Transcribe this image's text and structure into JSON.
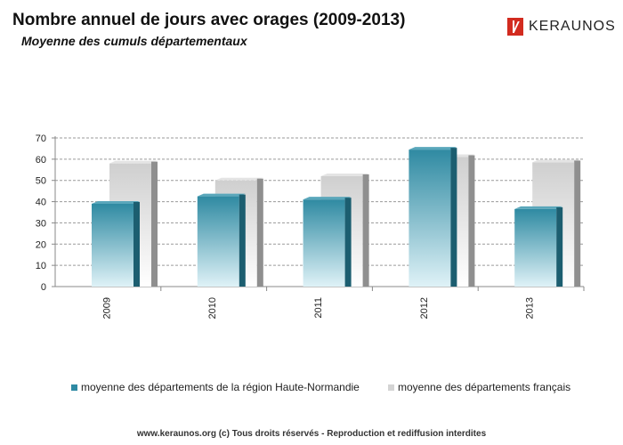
{
  "header": {
    "title": "Nombre annuel de jours avec orages (2009-2013)",
    "subtitle": "Moyenne des cumuls départementaux",
    "logo_text": "KERAUNOS"
  },
  "footer": {
    "text": "www.keraunos.org  (c) Tous droits réservés - Reproduction et rediffusion interdites"
  },
  "colors": {
    "series1": "#2e8aa3",
    "series2": "#c9c9c9",
    "logo_red": "#d22b1f"
  },
  "chart_data": {
    "type": "bar",
    "title": "Nombre annuel de jours avec orages (2009-2013)",
    "subtitle": "Moyenne des cumuls départementaux",
    "categories": [
      "2009",
      "2010",
      "2011",
      "2012",
      "2013"
    ],
    "series": [
      {
        "name": "moyenne des départements de la région Haute-Normandie",
        "values": [
          39,
          42.5,
          41,
          64.5,
          36.5
        ]
      },
      {
        "name": "moyenne des départements français",
        "values": [
          58,
          50,
          52,
          61,
          58.5
        ]
      }
    ],
    "yticks": [
      0,
      10,
      20,
      30,
      40,
      50,
      60,
      70
    ],
    "ylim": [
      0,
      70
    ],
    "grid": true,
    "legend_position": "bottom"
  }
}
